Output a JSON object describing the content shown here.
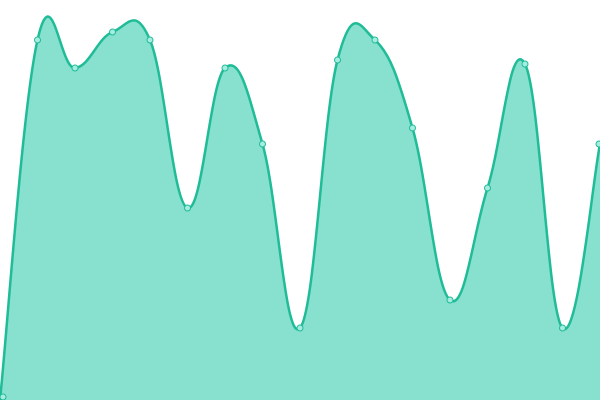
{
  "chart_data": {
    "type": "area",
    "title": "",
    "xlabel": "",
    "ylabel": "",
    "x": [
      0,
      1,
      2,
      3,
      4,
      5,
      6,
      7,
      8,
      9,
      10,
      11,
      12,
      13,
      14,
      15,
      16
    ],
    "series": [
      {
        "values": [
          0,
          90,
          83,
          92,
          90,
          48,
          83,
          64,
          18,
          85,
          90,
          68,
          25,
          53,
          84,
          18,
          64
        ]
      }
    ],
    "xlim": [
      0,
      16
    ],
    "ylim": [
      0,
      100
    ],
    "grid": false,
    "legend": "none",
    "colors": {
      "fill": "#88e0cf",
      "line": "#1fbc97",
      "marker_fill": "#a6ece0",
      "marker_stroke": "#1fbc97"
    }
  }
}
